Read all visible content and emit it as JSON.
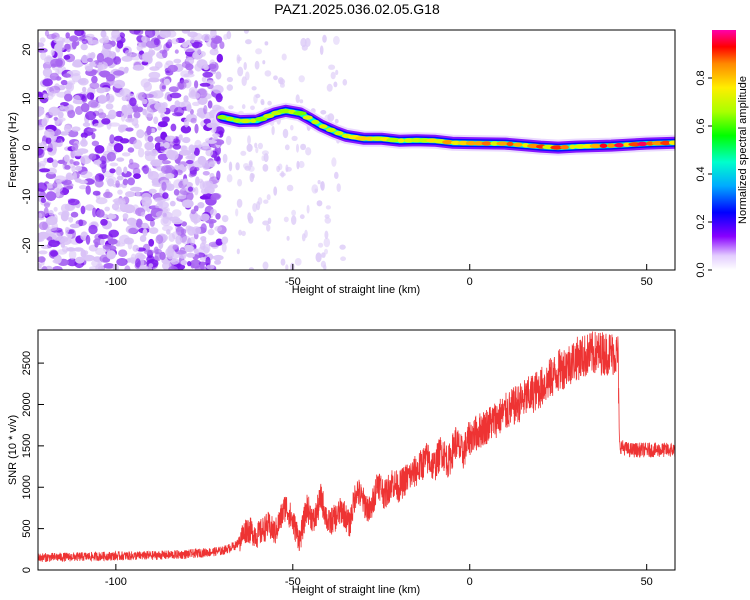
{
  "chart_data": [
    {
      "type": "heatmap",
      "title": "PAZ1.2025.036.02.05.G18",
      "xlabel": "Height of straight line (km)",
      "ylabel": "Frequency (Hz)",
      "xlim": [
        -122,
        58
      ],
      "ylim": [
        -25,
        24
      ],
      "xticks": [
        -100,
        -50,
        0,
        50
      ],
      "yticks": [
        20,
        10,
        0,
        -10,
        -20
      ],
      "colorbar": {
        "label": "Normalized spectral amplitude",
        "range": [
          0,
          1
        ],
        "ticks": [
          0.0,
          0.2,
          0.4,
          0.6,
          0.8
        ]
      },
      "ridge": {
        "x": [
          -70,
          -65,
          -60,
          -55,
          -52,
          -48,
          -45,
          -42,
          -38,
          -35,
          -30,
          -25,
          -20,
          -15,
          -10,
          -5,
          0,
          10,
          20,
          25,
          30,
          40,
          50,
          58
        ],
        "y": [
          6.2,
          5.4,
          5.5,
          7.0,
          7.5,
          7.0,
          5.8,
          4.5,
          3.2,
          2.4,
          1.8,
          1.8,
          1.4,
          1.5,
          1.4,
          1.0,
          0.9,
          0.8,
          0.2,
          0.0,
          0.2,
          0.4,
          0.8,
          1.0
        ],
        "peak_amplitude": 1.0
      },
      "noise_region_end_x": -70
    },
    {
      "type": "line",
      "xlabel": "Height of straight line (km)",
      "ylabel": "SNR (10 * v/v)",
      "xlim": [
        -122,
        58
      ],
      "ylim": [
        0,
        2900
      ],
      "xticks": [
        -100,
        -50,
        0,
        50
      ],
      "yticks": [
        0,
        500,
        1000,
        1500,
        2000,
        2500
      ],
      "color": "#ee3333",
      "series": [
        {
          "x": [
            -122,
            -110,
            -100,
            -90,
            -80,
            -70,
            -66,
            -63,
            -60,
            -57,
            -55,
            -52,
            -50,
            -48,
            -46,
            -44,
            -42,
            -40,
            -38,
            -36,
            -34,
            -32,
            -30,
            -28,
            -26,
            -24,
            -22,
            -20,
            -18,
            -15,
            -12,
            -10,
            -8,
            -6,
            -4,
            -2,
            0,
            5,
            10,
            15,
            20,
            25,
            30,
            35,
            40,
            41.9,
            42.3,
            45,
            50,
            55,
            58
          ],
          "y": [
            150,
            160,
            170,
            175,
            190,
            230,
            300,
            500,
            420,
            540,
            450,
            780,
            580,
            360,
            760,
            580,
            880,
            560,
            630,
            730,
            540,
            980,
            820,
            700,
            1080,
            900,
            1060,
            1000,
            1100,
            1200,
            1350,
            1250,
            1450,
            1300,
            1550,
            1400,
            1600,
            1750,
            1900,
            2050,
            2200,
            2400,
            2550,
            2620,
            2620,
            2600,
            1500,
            1450,
            1450,
            1450,
            1450
          ]
        }
      ]
    }
  ]
}
